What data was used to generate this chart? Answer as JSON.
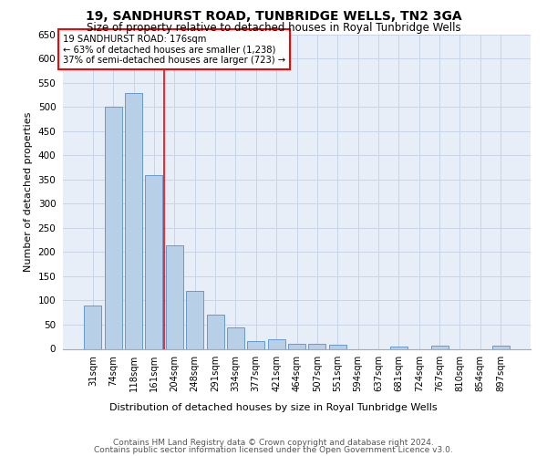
{
  "title": "19, SANDHURST ROAD, TUNBRIDGE WELLS, TN2 3GA",
  "subtitle": "Size of property relative to detached houses in Royal Tunbridge Wells",
  "xlabel": "Distribution of detached houses by size in Royal Tunbridge Wells",
  "ylabel": "Number of detached properties",
  "footer_line1": "Contains HM Land Registry data © Crown copyright and database right 2024.",
  "footer_line2": "Contains public sector information licensed under the Open Government Licence v3.0.",
  "categories": [
    "31sqm",
    "74sqm",
    "118sqm",
    "161sqm",
    "204sqm",
    "248sqm",
    "291sqm",
    "334sqm",
    "377sqm",
    "421sqm",
    "464sqm",
    "507sqm",
    "551sqm",
    "594sqm",
    "637sqm",
    "681sqm",
    "724sqm",
    "767sqm",
    "810sqm",
    "854sqm",
    "897sqm"
  ],
  "values": [
    90,
    500,
    528,
    358,
    213,
    120,
    70,
    44,
    16,
    19,
    10,
    11,
    8,
    0,
    0,
    5,
    0,
    6,
    0,
    0,
    6
  ],
  "bar_color": "#b8cfe8",
  "bar_edge_color": "#6699cc",
  "grid_color": "#c8d4e8",
  "plot_bg_color": "#e8eef8",
  "fig_bg_color": "#ffffff",
  "annotation_box_color": "white",
  "annotation_box_edge_color": "red",
  "red_line_x": 3.5,
  "ylim": [
    0,
    650
  ],
  "yticks": [
    0,
    50,
    100,
    150,
    200,
    250,
    300,
    350,
    400,
    450,
    500,
    550,
    600,
    650
  ]
}
